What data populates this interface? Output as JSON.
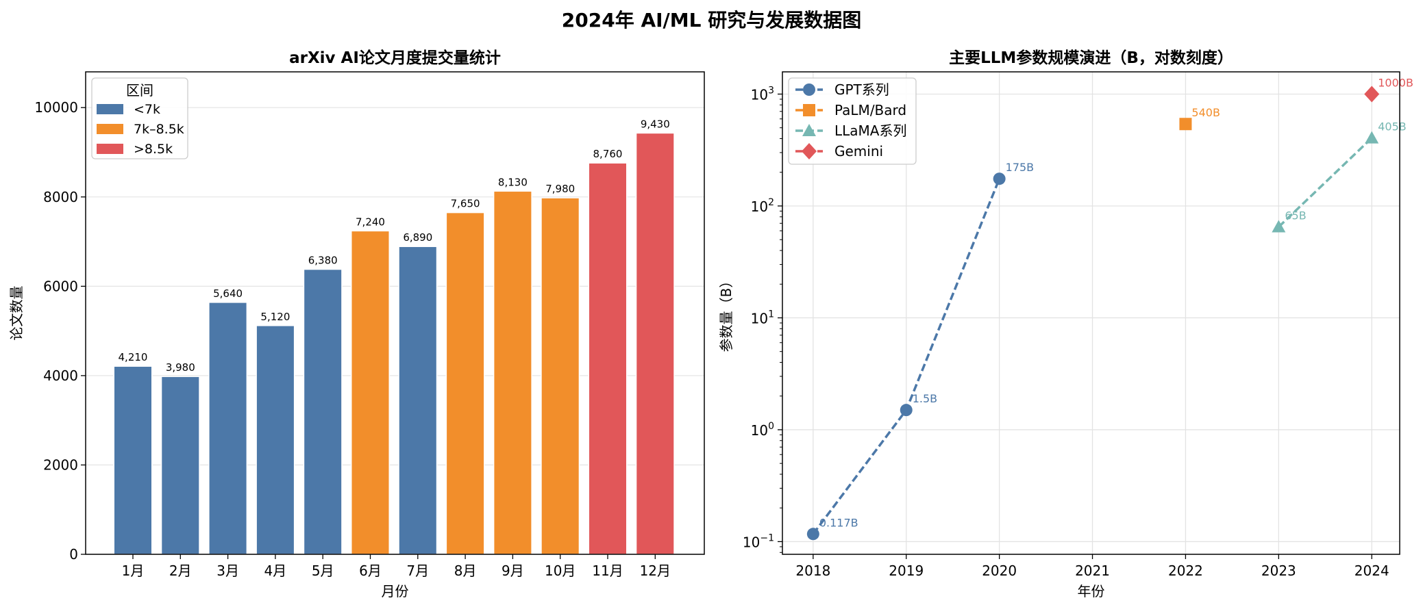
{
  "figure": {
    "suptitle": "2024年 AI/ML 研究与发展数据图"
  },
  "chart_data": [
    {
      "type": "bar",
      "title": "arXiv AI论文月度提交量统计",
      "xlabel": "月份",
      "ylabel": "论文数量",
      "categories": [
        "1月",
        "2月",
        "3月",
        "4月",
        "5月",
        "6月",
        "7月",
        "8月",
        "9月",
        "10月",
        "11月",
        "12月"
      ],
      "values": [
        4210,
        3980,
        5640,
        5120,
        6380,
        7240,
        6890,
        7650,
        8130,
        7980,
        8760,
        9430
      ],
      "value_labels": [
        "4,210",
        "3,980",
        "5,640",
        "5,120",
        "6,380",
        "7,240",
        "6,890",
        "7,650",
        "8,130",
        "7,980",
        "8,760",
        "9,430"
      ],
      "bar_groups": [
        "<7k",
        "<7k",
        "<7k",
        "<7k",
        "<7k",
        "7k–8.5k",
        "<7k",
        "7k–8.5k",
        "7k–8.5k",
        "7k–8.5k",
        ">8.5k",
        ">8.5k"
      ],
      "ylim": [
        0,
        10800
      ],
      "yticks": [
        0,
        2000,
        4000,
        6000,
        8000,
        10000
      ],
      "ytick_labels": [
        "0",
        "2000",
        "4000",
        "6000",
        "8000",
        "10000"
      ],
      "grid": "y",
      "legend": {
        "title": "区间",
        "placement": "top-left",
        "entries": [
          {
            "label": "<7k",
            "color": "#4c78a8"
          },
          {
            "label": "7k–8.5k",
            "color": "#f28e2b"
          },
          {
            "label": ">8.5k",
            "color": "#e15759"
          }
        ]
      }
    },
    {
      "type": "line",
      "title": "主要LLM参数规模演进（B，对数刻度）",
      "xlabel": "年份",
      "ylabel": "参数量（B）",
      "yscale": "log",
      "ylim": [
        0.077,
        1580
      ],
      "xlim": [
        2017.67,
        2024.3
      ],
      "xticks": [
        2018,
        2019,
        2020,
        2021,
        2022,
        2023,
        2024
      ],
      "xtick_labels": [
        "2018",
        "2019",
        "2020",
        "2021",
        "2022",
        "2023",
        "2024"
      ],
      "yticks": [
        0.1,
        1,
        10,
        100,
        1000
      ],
      "ytick_labels": [
        [
          "10",
          "−1"
        ],
        [
          "10",
          "0"
        ],
        [
          "10",
          "1"
        ],
        [
          "10",
          "2"
        ],
        [
          "10",
          "3"
        ]
      ],
      "grid": "both",
      "legend": {
        "placement": "top-left"
      },
      "series": [
        {
          "name": "GPT系列",
          "color": "#4c78a8",
          "marker": "circle",
          "x": [
            2018,
            2019,
            2020
          ],
          "y": [
            0.117,
            1.5,
            175
          ],
          "labels": [
            "0.117B",
            "1.5B",
            "175B"
          ]
        },
        {
          "name": "PaLM/Bard",
          "color": "#f28e2b",
          "marker": "square",
          "x": [
            2022
          ],
          "y": [
            540
          ],
          "labels": [
            "540B"
          ]
        },
        {
          "name": "LLaMA系列",
          "color": "#76b7b2",
          "marker": "triangle",
          "x": [
            2023,
            2024
          ],
          "y": [
            65,
            405
          ],
          "labels": [
            "65B",
            "405B"
          ]
        },
        {
          "name": "Gemini",
          "color": "#e15759",
          "marker": "diamond",
          "x": [
            2024
          ],
          "y": [
            1000
          ],
          "labels": [
            "1000B"
          ]
        }
      ]
    }
  ]
}
